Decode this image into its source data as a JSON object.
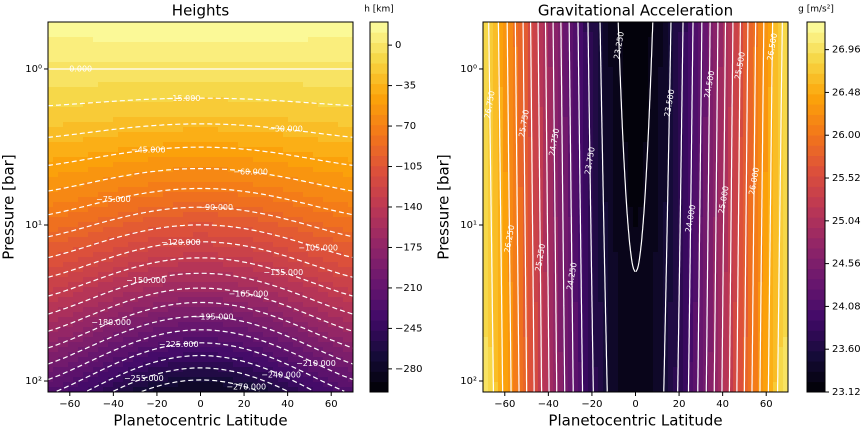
{
  "chart_data": [
    {
      "type": "contour",
      "title": "Heights",
      "xlabel": "Planetocentric Latitude",
      "ylabel": "Pressure [bar]",
      "xlim": [
        -70,
        70
      ],
      "xticks": [
        {
          "value": -60,
          "label": "−60"
        },
        {
          "value": -40,
          "label": "−40"
        },
        {
          "value": -20,
          "label": "−20"
        },
        0,
        20,
        40,
        60
      ],
      "ylim": [
        0.5,
        117.6
      ],
      "log_y": true,
      "y_inverted": true,
      "yticks": [
        {
          "value": 1,
          "label": "10⁰"
        },
        {
          "value": 10,
          "label": "10¹"
        },
        {
          "value": 100,
          "label": "10²"
        }
      ],
      "colormap": "inferno",
      "colorbar": {
        "label": "h [km]",
        "lim": [
          -300,
          20
        ],
        "ticks": [
          0,
          {
            "value": -35,
            "label": "−35"
          },
          {
            "value": -70,
            "label": "−70"
          },
          {
            "value": -105,
            "label": "−105"
          },
          {
            "value": -140,
            "label": "−140"
          },
          {
            "value": -175,
            "label": "−175"
          },
          {
            "value": -210,
            "label": "−210"
          },
          {
            "value": -245,
            "label": "−245"
          },
          {
            "value": -280,
            "label": "−280"
          }
        ]
      },
      "contour_color": "#ffffff",
      "contour_levels": [
        0,
        -15,
        -30,
        -45,
        -60,
        -75,
        -90,
        -105,
        -120,
        -135,
        -150,
        -165,
        -180,
        -195,
        -210,
        -225,
        -240,
        -255,
        -270
      ],
      "contour_labels": [
        "0.000",
        "−15.000",
        "−30.000",
        "−45.000",
        "−60.000",
        "−75.000",
        "−90.000",
        "−105.000",
        "−120.000",
        "−135.000",
        "−150.000",
        "−165.000",
        "−180.000",
        "−195.000",
        "−210.000",
        "−225.000",
        "−240.000",
        "−255.000",
        "−270.000"
      ]
    },
    {
      "type": "contour",
      "title": "Gravitational Acceleration",
      "xlabel": "Planetocentric Latitude",
      "ylabel": "Pressure [bar]",
      "xlim": [
        -70,
        70
      ],
      "xticks": [
        {
          "value": -60,
          "label": "−60"
        },
        {
          "value": -40,
          "label": "−40"
        },
        {
          "value": -20,
          "label": "−20"
        },
        0,
        20,
        40,
        60
      ],
      "ylim": [
        0.5,
        117.6
      ],
      "log_y": true,
      "y_inverted": true,
      "yticks": [
        {
          "value": 1,
          "label": "10⁰"
        },
        {
          "value": 10,
          "label": "10¹"
        },
        {
          "value": 100,
          "label": "10²"
        }
      ],
      "colormap": "inferno",
      "colorbar": {
        "label": "g [m/s²]",
        "lim": [
          23.12,
          27.27
        ],
        "ticks": [
          23.12,
          {
            "value": 23.6,
            "label": "23.60"
          },
          24.08,
          24.56,
          25.04,
          25.52,
          {
            "value": 26,
            "label": "26.00"
          },
          26.48,
          26.96
        ]
      },
      "contour_color": "#ffffff",
      "contour_levels": [
        23.25,
        23.5,
        23.75,
        24,
        24.25,
        24.5,
        24.75,
        25,
        25.25,
        25.5,
        25.75,
        26,
        26.25,
        26.5,
        26.75
      ],
      "contour_labels": [
        "23.250",
        "23.500",
        "23.750",
        "24.000",
        "24.250",
        "24.500",
        "24.750",
        "25.000",
        "25.250",
        "25.500",
        "25.750",
        "26.000",
        "26.250",
        "26.500",
        "26.750"
      ]
    }
  ]
}
